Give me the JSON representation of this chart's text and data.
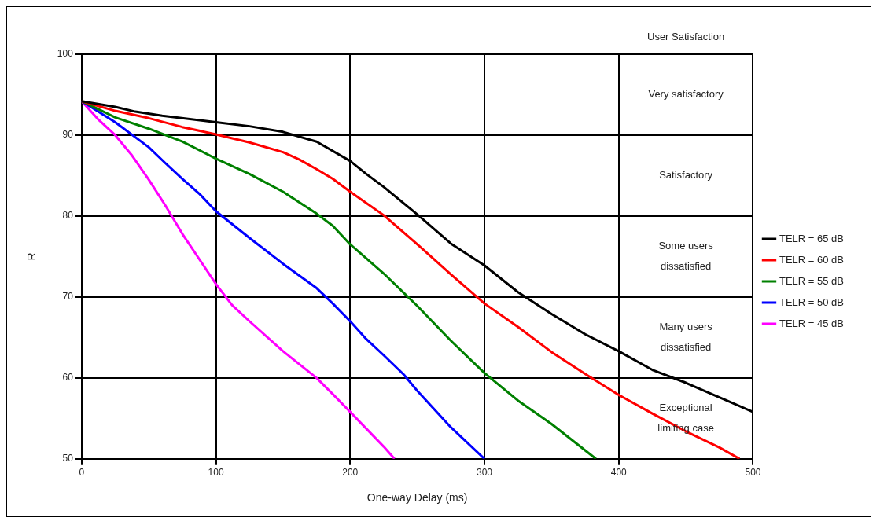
{
  "chart_data": {
    "type": "line",
    "xlabel": "One-way Delay (ms)",
    "ylabel": "R",
    "xlim": [
      0,
      500
    ],
    "xticks": [
      0,
      100,
      200,
      300,
      400,
      500
    ],
    "ylim": [
      50,
      100
    ],
    "yticks": [
      50,
      60,
      70,
      80,
      90,
      100
    ],
    "grid": true,
    "legend": "right",
    "marker": "none",
    "line_style": "solid",
    "annotations": [
      "User Satisfaction",
      "Very satisfactory",
      "Satisfactory",
      "Some users dissatisfied",
      "Many users dissatisfied",
      "Exceptional limiting case"
    ],
    "series": [
      {
        "name": "TELR = 65 dB",
        "color": "#000000",
        "x": [
          0,
          25,
          40,
          60,
          100,
          125,
          150,
          175,
          200,
          212,
          225,
          250,
          275,
          300,
          325,
          350,
          375,
          400,
          425,
          450,
          475,
          500
        ],
        "values": [
          94.2,
          93.5,
          92.9,
          92.4,
          91.6,
          91.1,
          90.4,
          89.2,
          86.8,
          85.2,
          83.6,
          80.2,
          76.6,
          73.9,
          70.6,
          67.9,
          65.4,
          63.3,
          61.0,
          59.4,
          57.6,
          55.8
        ]
      },
      {
        "name": "TELR = 60 dB",
        "color": "#ff0000",
        "x": [
          0,
          25,
          50,
          75,
          100,
          125,
          150,
          162,
          175,
          187,
          200,
          225,
          250,
          275,
          300,
          325,
          350,
          375,
          400,
          425,
          450,
          475,
          490
        ],
        "values": [
          94.2,
          93.0,
          92.1,
          91.0,
          90.1,
          89.1,
          87.9,
          87.0,
          85.8,
          84.6,
          83.0,
          80.1,
          76.5,
          72.8,
          69.2,
          66.3,
          63.2,
          60.5,
          57.9,
          55.6,
          53.4,
          51.4,
          50
        ]
      },
      {
        "name": "TELR = 55 dB",
        "color": "#008000",
        "x": [
          0,
          25,
          50,
          75,
          100,
          125,
          150,
          175,
          187,
          200,
          225,
          250,
          275,
          300,
          325,
          350,
          383
        ],
        "values": [
          94.2,
          92.2,
          90.8,
          89.2,
          87.1,
          85.2,
          83.0,
          80.3,
          78.8,
          76.5,
          72.9,
          68.9,
          64.6,
          60.6,
          57.2,
          54.3,
          50
        ]
      },
      {
        "name": "TELR = 50 dB",
        "color": "#0000ff",
        "x": [
          0,
          25,
          50,
          62,
          75,
          88,
          100,
          125,
          150,
          175,
          187,
          200,
          212,
          225,
          240,
          250,
          275,
          300
        ],
        "values": [
          94.2,
          91.6,
          88.5,
          86.6,
          84.6,
          82.7,
          80.6,
          77.3,
          74.1,
          71.1,
          69.2,
          67.0,
          64.8,
          62.8,
          60.4,
          58.4,
          53.9,
          50
        ]
      },
      {
        "name": "TELR = 45 dB",
        "color": "#ff00ff",
        "x": [
          0,
          12,
          25,
          37,
          50,
          62,
          75,
          100,
          112,
          125,
          150,
          175,
          187,
          200,
          225,
          233
        ],
        "values": [
          94.2,
          92.0,
          90.0,
          87.6,
          84.5,
          81.4,
          77.8,
          71.6,
          69.0,
          67.0,
          63.3,
          60.0,
          58.0,
          55.8,
          51.5,
          50
        ]
      }
    ]
  }
}
